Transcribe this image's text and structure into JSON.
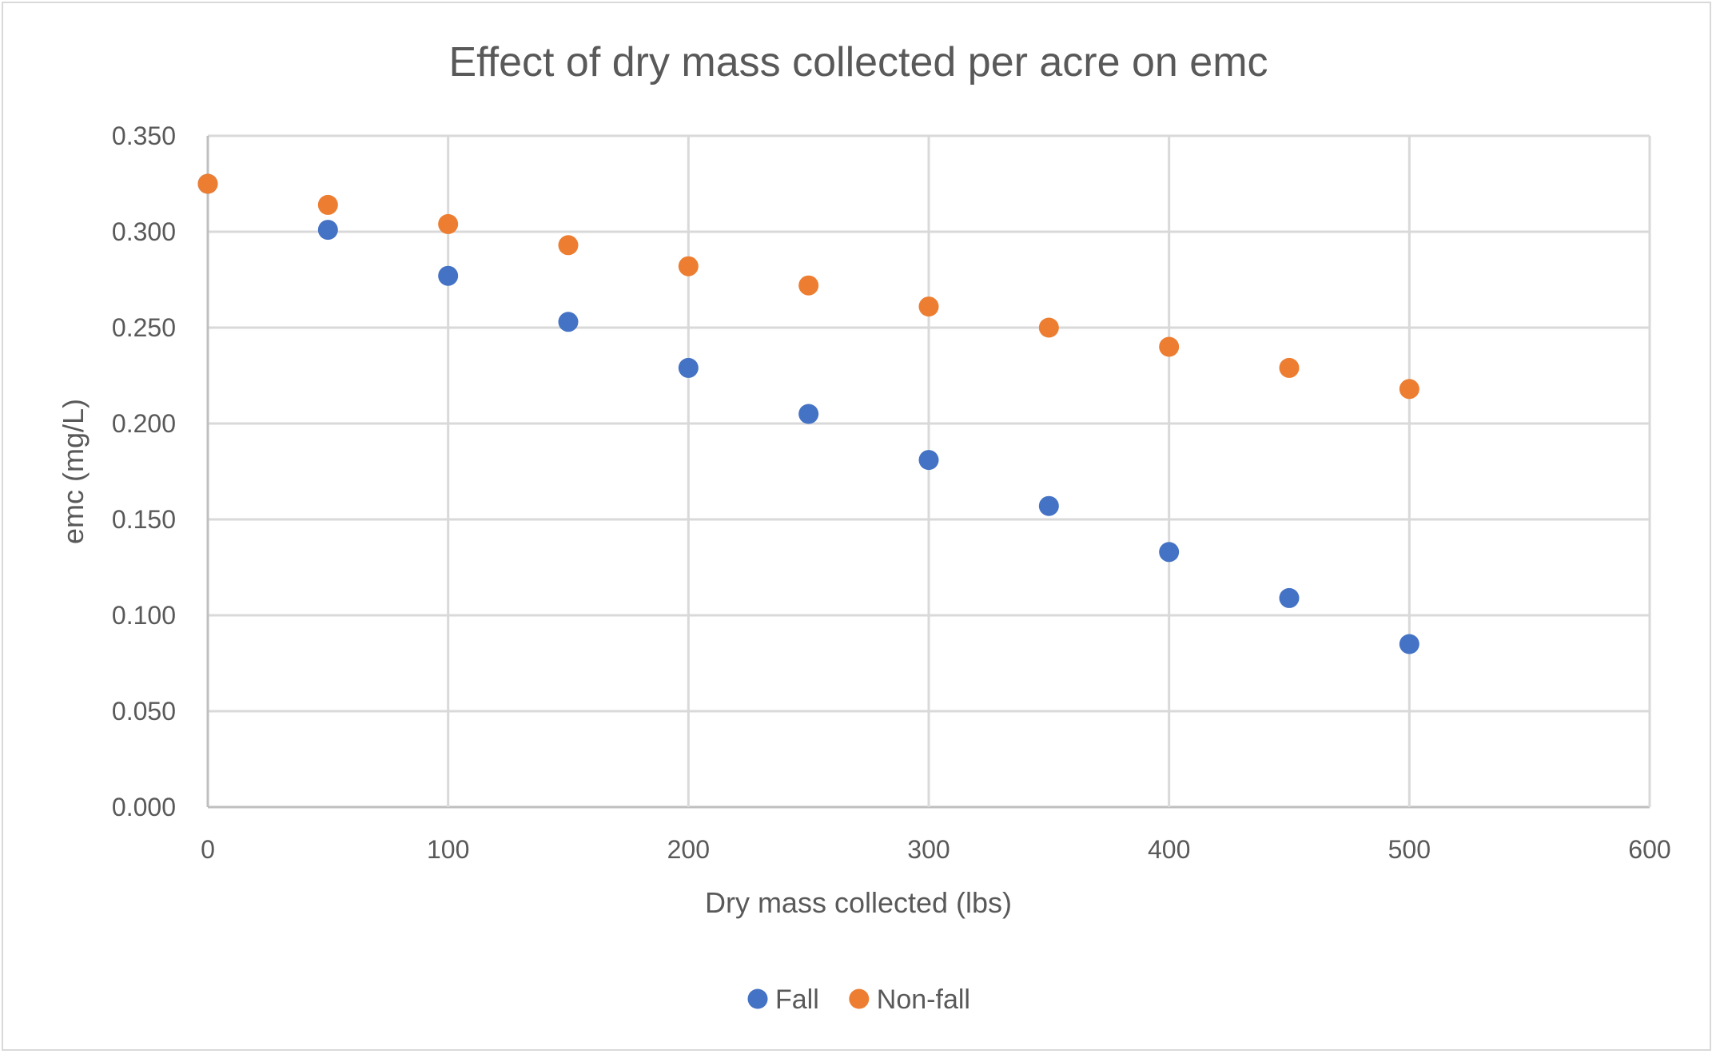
{
  "chart_data": {
    "type": "scatter",
    "title": "Effect of dry mass collected per acre on emc",
    "xlabel": "Dry mass collected (lbs)",
    "ylabel": "emc (mg/L)",
    "xlim": [
      0,
      600
    ],
    "ylim": [
      0,
      0.35
    ],
    "xticks": [
      "0",
      "100",
      "200",
      "300",
      "400",
      "500",
      "600"
    ],
    "yticks": [
      "0.000",
      "0.050",
      "0.100",
      "0.150",
      "0.200",
      "0.250",
      "0.300",
      "0.350"
    ],
    "grid": true,
    "legend_position": "bottom",
    "series": [
      {
        "name": "Fall",
        "color": "#4472C4",
        "x": [
          0,
          50,
          100,
          150,
          200,
          250,
          300,
          350,
          400,
          450,
          500
        ],
        "y": [
          0.325,
          0.301,
          0.277,
          0.253,
          0.229,
          0.205,
          0.181,
          0.157,
          0.133,
          0.109,
          0.085
        ]
      },
      {
        "name": "Non-fall",
        "color": "#ED7D31",
        "x": [
          0,
          50,
          100,
          150,
          200,
          250,
          300,
          350,
          400,
          450,
          500
        ],
        "y": [
          0.325,
          0.314,
          0.304,
          0.293,
          0.282,
          0.272,
          0.261,
          0.25,
          0.24,
          0.229,
          0.218
        ]
      }
    ]
  }
}
